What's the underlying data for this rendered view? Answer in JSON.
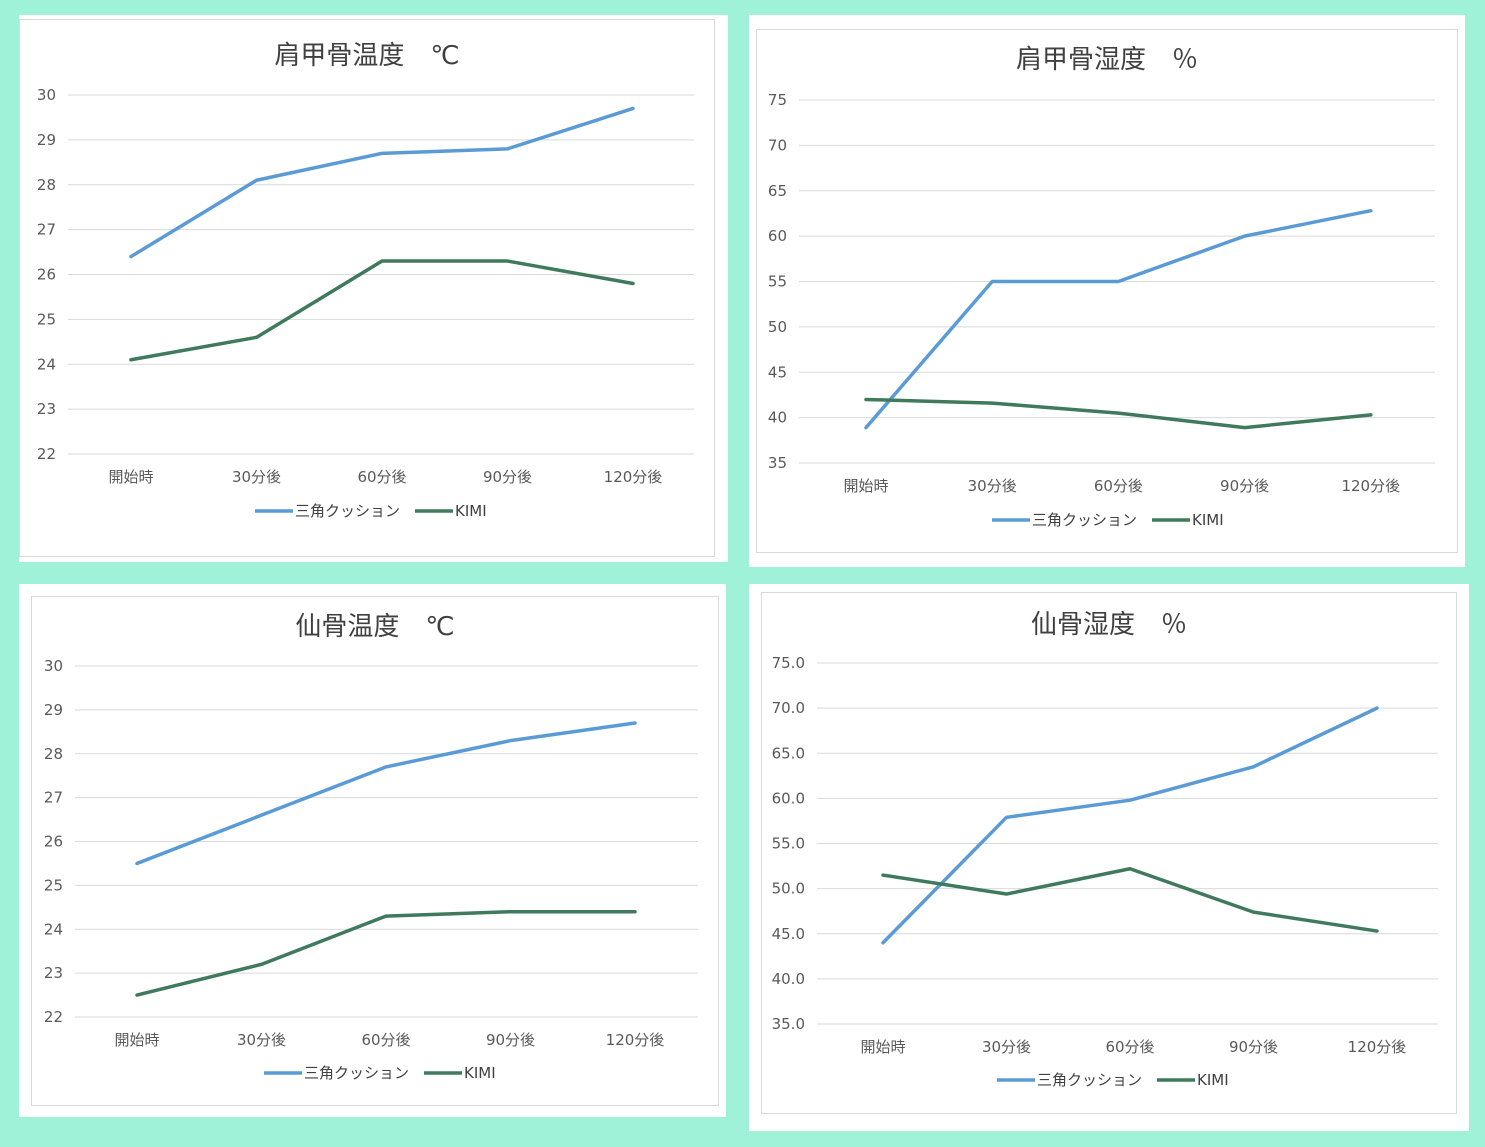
{
  "colors": {
    "background": "#9ff2d8",
    "series_blue": "#5b9bd5",
    "series_green": "#3f7a5c",
    "grid": "#d9d9d9",
    "text": "#595959"
  },
  "chart_data": [
    {
      "type": "line",
      "title": "肩甲骨温度　℃",
      "categories": [
        "開始時",
        "30分後",
        "60分後",
        "90分後",
        "120分後"
      ],
      "ylim": [
        22,
        30
      ],
      "yticks": [
        "22",
        "23",
        "24",
        "25",
        "26",
        "27",
        "28",
        "29",
        "30"
      ],
      "grid": true,
      "legend": "bottom",
      "series": [
        {
          "name": "三角クッション",
          "values": [
            26.4,
            28.1,
            28.7,
            28.8,
            29.7
          ]
        },
        {
          "name": "KIMI",
          "values": [
            24.1,
            24.6,
            26.3,
            26.3,
            25.8
          ]
        }
      ]
    },
    {
      "type": "line",
      "title": "肩甲骨湿度　％",
      "categories": [
        "開始時",
        "30分後",
        "60分後",
        "90分後",
        "120分後"
      ],
      "ylim": [
        35,
        75
      ],
      "yticks": [
        "35",
        "40",
        "45",
        "50",
        "55",
        "60",
        "65",
        "70",
        "75"
      ],
      "grid": true,
      "legend": "bottom",
      "series": [
        {
          "name": "三角クッション",
          "values": [
            38.9,
            55.0,
            55.0,
            60.0,
            62.8
          ]
        },
        {
          "name": "KIMI",
          "values": [
            42.0,
            41.6,
            40.5,
            38.9,
            40.3
          ]
        }
      ]
    },
    {
      "type": "line",
      "title": "仙骨温度　℃",
      "categories": [
        "開始時",
        "30分後",
        "60分後",
        "90分後",
        "120分後"
      ],
      "ylim": [
        22,
        30
      ],
      "yticks": [
        "22",
        "23",
        "24",
        "25",
        "26",
        "27",
        "28",
        "29",
        "30"
      ],
      "grid": true,
      "legend": "bottom",
      "series": [
        {
          "name": "三角クッション",
          "values": [
            25.5,
            26.6,
            27.7,
            28.3,
            28.7
          ]
        },
        {
          "name": "KIMI",
          "values": [
            22.5,
            23.2,
            24.3,
            24.4,
            24.4
          ]
        }
      ]
    },
    {
      "type": "line",
      "title": "仙骨湿度　％",
      "categories": [
        "開始時",
        "30分後",
        "60分後",
        "90分後",
        "120分後"
      ],
      "ylim": [
        35,
        75
      ],
      "yticks": [
        "35.0",
        "40.0",
        "45.0",
        "50.0",
        "55.0",
        "60.0",
        "65.0",
        "70.0",
        "75.0"
      ],
      "grid": true,
      "legend": "bottom",
      "series": [
        {
          "name": "三角クッション",
          "values": [
            44.0,
            57.9,
            59.8,
            63.5,
            70.0
          ]
        },
        {
          "name": "KIMI",
          "values": [
            51.5,
            49.4,
            52.2,
            47.4,
            45.3
          ]
        }
      ]
    }
  ]
}
